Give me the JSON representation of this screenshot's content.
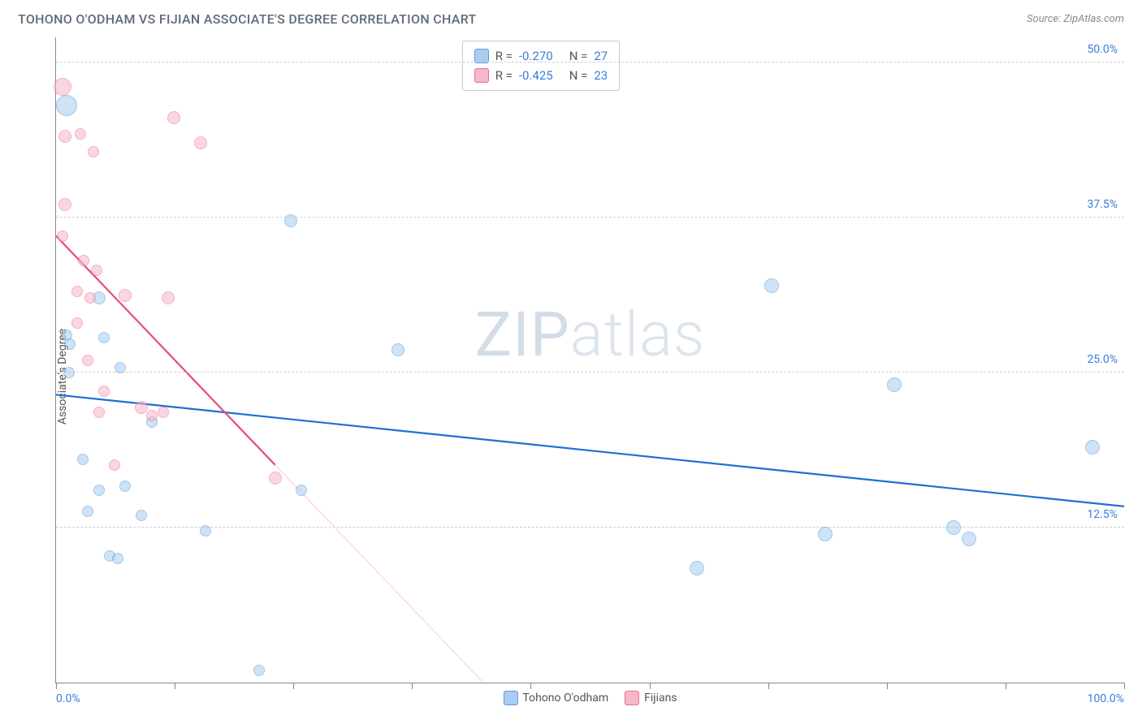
{
  "title": "TOHONO O'ODHAM VS FIJIAN ASSOCIATE'S DEGREE CORRELATION CHART",
  "source_label": "Source: ZipAtlas.com",
  "ylabel": "Associate's Degree",
  "watermark_bold": "ZIP",
  "watermark_thin": "atlas",
  "chart": {
    "type": "scatter",
    "xlim": [
      0,
      100
    ],
    "ylim": [
      0,
      52
    ],
    "x_min_label": "0.0%",
    "x_max_label": "100.0%",
    "xtick_positions": [
      0,
      11.1,
      22.2,
      33.3,
      44.4,
      55.6,
      66.7,
      77.8,
      88.9,
      100
    ],
    "yticks": [
      {
        "v": 12.5,
        "label": "12.5%"
      },
      {
        "v": 25.0,
        "label": "25.0%"
      },
      {
        "v": 37.5,
        "label": "37.5%"
      },
      {
        "v": 50.0,
        "label": "50.0%"
      }
    ],
    "grid_color": "#d0d0d0",
    "background_color": "#ffffff",
    "series": [
      {
        "name": "Tohono O'odham",
        "fill": "#a9cdf0",
        "stroke": "#5b9bd5",
        "fill_opacity": 0.55,
        "trend_color": "#1f6fd4",
        "trend_dash_color": "#a9cdf0",
        "trend": {
          "x1": 0,
          "y1": 23.2,
          "x2": 100,
          "y2": 14.2
        },
        "points": [
          {
            "x": 1.0,
            "y": 46.5,
            "r": 13
          },
          {
            "x": 22.0,
            "y": 37.2,
            "r": 8
          },
          {
            "x": 4.0,
            "y": 31.0,
            "r": 8
          },
          {
            "x": 1.0,
            "y": 28.0,
            "r": 7
          },
          {
            "x": 1.3,
            "y": 27.3,
            "r": 7
          },
          {
            "x": 4.5,
            "y": 27.8,
            "r": 7
          },
          {
            "x": 1.2,
            "y": 25.0,
            "r": 7
          },
          {
            "x": 6.0,
            "y": 25.4,
            "r": 7
          },
          {
            "x": 32.0,
            "y": 26.8,
            "r": 8
          },
          {
            "x": 67.0,
            "y": 32.0,
            "r": 9
          },
          {
            "x": 78.5,
            "y": 24.0,
            "r": 9
          },
          {
            "x": 97.0,
            "y": 19.0,
            "r": 9
          },
          {
            "x": 2.5,
            "y": 18.0,
            "r": 7
          },
          {
            "x": 4.0,
            "y": 15.5,
            "r": 7
          },
          {
            "x": 6.5,
            "y": 15.8,
            "r": 7
          },
          {
            "x": 23.0,
            "y": 15.5,
            "r": 7
          },
          {
            "x": 3.0,
            "y": 13.8,
            "r": 7
          },
          {
            "x": 8.0,
            "y": 13.5,
            "r": 7
          },
          {
            "x": 14.0,
            "y": 12.2,
            "r": 7
          },
          {
            "x": 5.0,
            "y": 10.2,
            "r": 7
          },
          {
            "x": 5.8,
            "y": 10.0,
            "r": 7
          },
          {
            "x": 60.0,
            "y": 9.2,
            "r": 9
          },
          {
            "x": 72.0,
            "y": 12.0,
            "r": 9
          },
          {
            "x": 84.0,
            "y": 12.5,
            "r": 9
          },
          {
            "x": 85.5,
            "y": 11.6,
            "r": 9
          },
          {
            "x": 19.0,
            "y": 1.0,
            "r": 7
          },
          {
            "x": 9.0,
            "y": 21.0,
            "r": 7
          }
        ]
      },
      {
        "name": "Fijians",
        "fill": "#f6b8c8",
        "stroke": "#e86f91",
        "fill_opacity": 0.55,
        "trend_color": "#e64d7a",
        "trend_dash_color": "#f6b8c8",
        "trend": {
          "x1": 0,
          "y1": 36.0,
          "x2": 40,
          "y2": 0
        },
        "points": [
          {
            "x": 0.6,
            "y": 48.0,
            "r": 11
          },
          {
            "x": 0.8,
            "y": 44.0,
            "r": 8
          },
          {
            "x": 2.3,
            "y": 44.2,
            "r": 7
          },
          {
            "x": 3.5,
            "y": 42.8,
            "r": 7
          },
          {
            "x": 11.0,
            "y": 45.5,
            "r": 8
          },
          {
            "x": 13.5,
            "y": 43.5,
            "r": 8
          },
          {
            "x": 0.8,
            "y": 38.5,
            "r": 8
          },
          {
            "x": 0.6,
            "y": 36.0,
            "r": 7
          },
          {
            "x": 2.6,
            "y": 34.0,
            "r": 7
          },
          {
            "x": 3.8,
            "y": 33.2,
            "r": 7
          },
          {
            "x": 2.0,
            "y": 31.5,
            "r": 7
          },
          {
            "x": 3.2,
            "y": 31.0,
            "r": 7
          },
          {
            "x": 6.5,
            "y": 31.2,
            "r": 8
          },
          {
            "x": 10.5,
            "y": 31.0,
            "r": 8
          },
          {
            "x": 2.0,
            "y": 29.0,
            "r": 7
          },
          {
            "x": 4.5,
            "y": 23.5,
            "r": 7
          },
          {
            "x": 4.0,
            "y": 21.8,
            "r": 7
          },
          {
            "x": 8.0,
            "y": 22.2,
            "r": 8
          },
          {
            "x": 9.0,
            "y": 21.5,
            "r": 7
          },
          {
            "x": 10.0,
            "y": 21.8,
            "r": 7
          },
          {
            "x": 5.5,
            "y": 17.5,
            "r": 7
          },
          {
            "x": 20.5,
            "y": 16.5,
            "r": 8
          },
          {
            "x": 3.0,
            "y": 26.0,
            "r": 7
          }
        ]
      }
    ]
  },
  "stats": [
    {
      "swatch_fill": "#a9cdf0",
      "swatch_stroke": "#5b9bd5",
      "r": "-0.270",
      "n": "27"
    },
    {
      "swatch_fill": "#f6b8c8",
      "swatch_stroke": "#e86f91",
      "r": "-0.425",
      "n": "23"
    }
  ],
  "legend": [
    {
      "swatch_fill": "#a9cdf0",
      "swatch_stroke": "#5b9bd5",
      "label": "Tohono O'odham"
    },
    {
      "swatch_fill": "#f6b8c8",
      "swatch_stroke": "#e86f91",
      "label": "Fijians"
    }
  ]
}
